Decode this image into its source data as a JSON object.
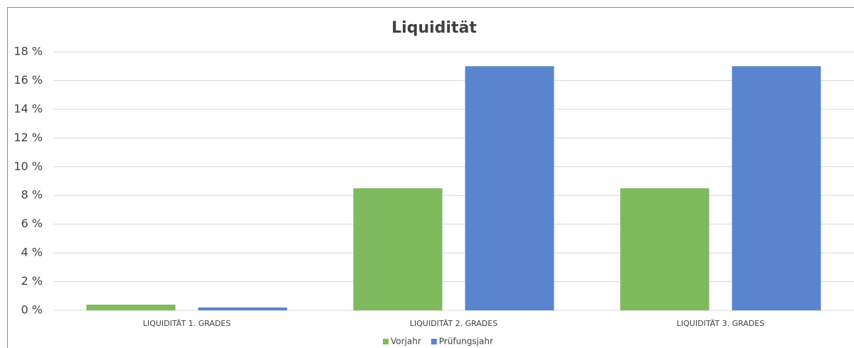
{
  "chart_data": {
    "type": "bar",
    "title": "Liquidität",
    "categories": [
      "LIQUIDITÄT 1. GRADES",
      "LIQUIDITÄT 2. GRADES",
      "LIQUIDITÄT 3. GRADES"
    ],
    "series": [
      {
        "name": "Vorjahr",
        "color": "#7fba5e",
        "values": [
          0.4,
          8.5,
          8.5
        ]
      },
      {
        "name": "Prüfungsjahr",
        "color": "#5b84cf",
        "values": [
          0.2,
          17,
          17
        ]
      }
    ],
    "ylim": [
      0,
      18
    ],
    "yticks": [
      {
        "value": 0,
        "label": "0 %"
      },
      {
        "value": 2,
        "label": "2 %"
      },
      {
        "value": 4,
        "label": "4 %"
      },
      {
        "value": 6,
        "label": "6 %"
      },
      {
        "value": 8,
        "label": "8 %"
      },
      {
        "value": 10,
        "label": "10 %"
      },
      {
        "value": 12,
        "label": "12 %"
      },
      {
        "value": 14,
        "label": "14 %"
      },
      {
        "value": 16,
        "label": "16 %"
      },
      {
        "value": 18,
        "label": "18 %"
      }
    ],
    "grid": true,
    "legend": "bottom"
  }
}
